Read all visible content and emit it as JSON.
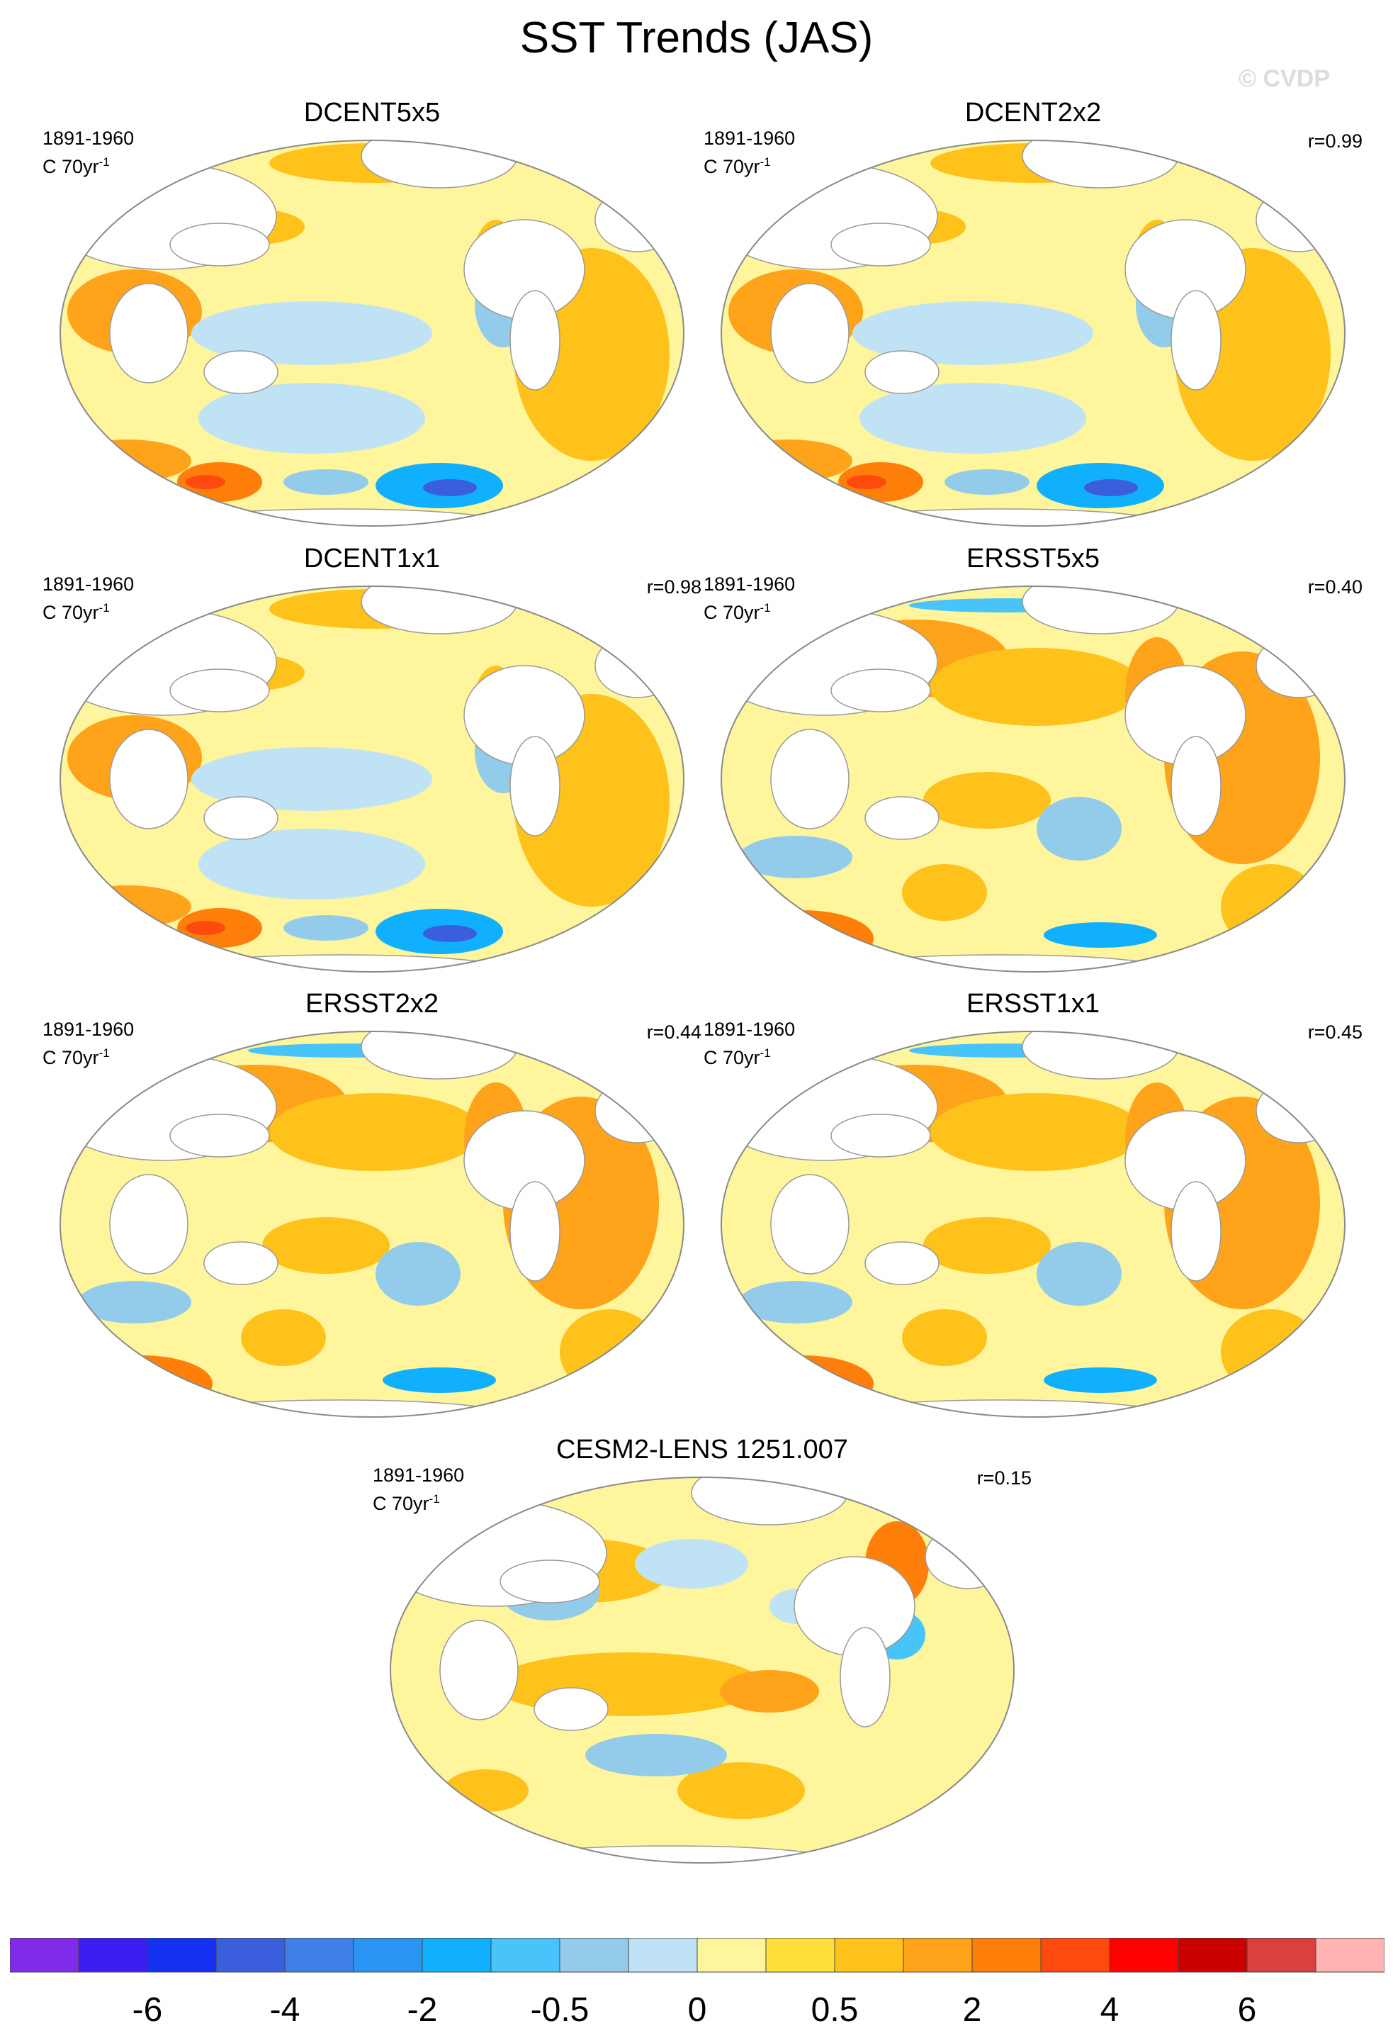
{
  "title": "SST Trends (JAS)",
  "copyright": "© CVDP",
  "colors": {
    "ocean_base": "#fff59d",
    "land": "#ffffff",
    "outline": "#8a8a8a",
    "coast": "#9a9a9a"
  },
  "panels": [
    {
      "title": "DCENT5x5",
      "period": "1891-1960",
      "units": "C 70yr",
      "units_exp": "-1",
      "corr": "",
      "pattern": "dcent"
    },
    {
      "title": "DCENT2x2",
      "period": "1891-1960",
      "units": "C 70yr",
      "units_exp": "-1",
      "corr": "r=0.99",
      "pattern": "dcent"
    },
    {
      "title": "DCENT1x1",
      "period": "1891-1960",
      "units": "C 70yr",
      "units_exp": "-1",
      "corr": "r=0.98",
      "pattern": "dcent"
    },
    {
      "title": "ERSST5x5",
      "period": "1891-1960",
      "units": "C 70yr",
      "units_exp": "-1",
      "corr": "r=0.40",
      "pattern": "ersst"
    },
    {
      "title": "ERSST2x2",
      "period": "1891-1960",
      "units": "C 70yr",
      "units_exp": "-1",
      "corr": "r=0.44",
      "pattern": "ersst"
    },
    {
      "title": "ERSST1x1",
      "period": "1891-1960",
      "units": "C 70yr",
      "units_exp": "-1",
      "corr": "r=0.45",
      "pattern": "ersst"
    },
    {
      "title": "CESM2-LENS 1251.007",
      "period": "1891-1960",
      "units": "C 70yr",
      "units_exp": "-1",
      "corr": "r=0.15",
      "pattern": "cesm"
    }
  ],
  "colorbar": {
    "colors": [
      "#7f2be8",
      "#3a1ff0",
      "#1430f0",
      "#3b5fdc",
      "#3f7fe8",
      "#2a95f2",
      "#10b0ff",
      "#48c4fb",
      "#93cceb",
      "#bfe3f5",
      "#fff59d",
      "#ffdf3a",
      "#ffc21a",
      "#ffa41a",
      "#ff7f0a",
      "#ff4a0f",
      "#ff0000",
      "#cc0000",
      "#d94040",
      "#ffb3b3"
    ],
    "labels": [
      "-6",
      "-4",
      "-2",
      "-0.5",
      "0",
      "0.5",
      "2",
      "4",
      "6"
    ]
  }
}
